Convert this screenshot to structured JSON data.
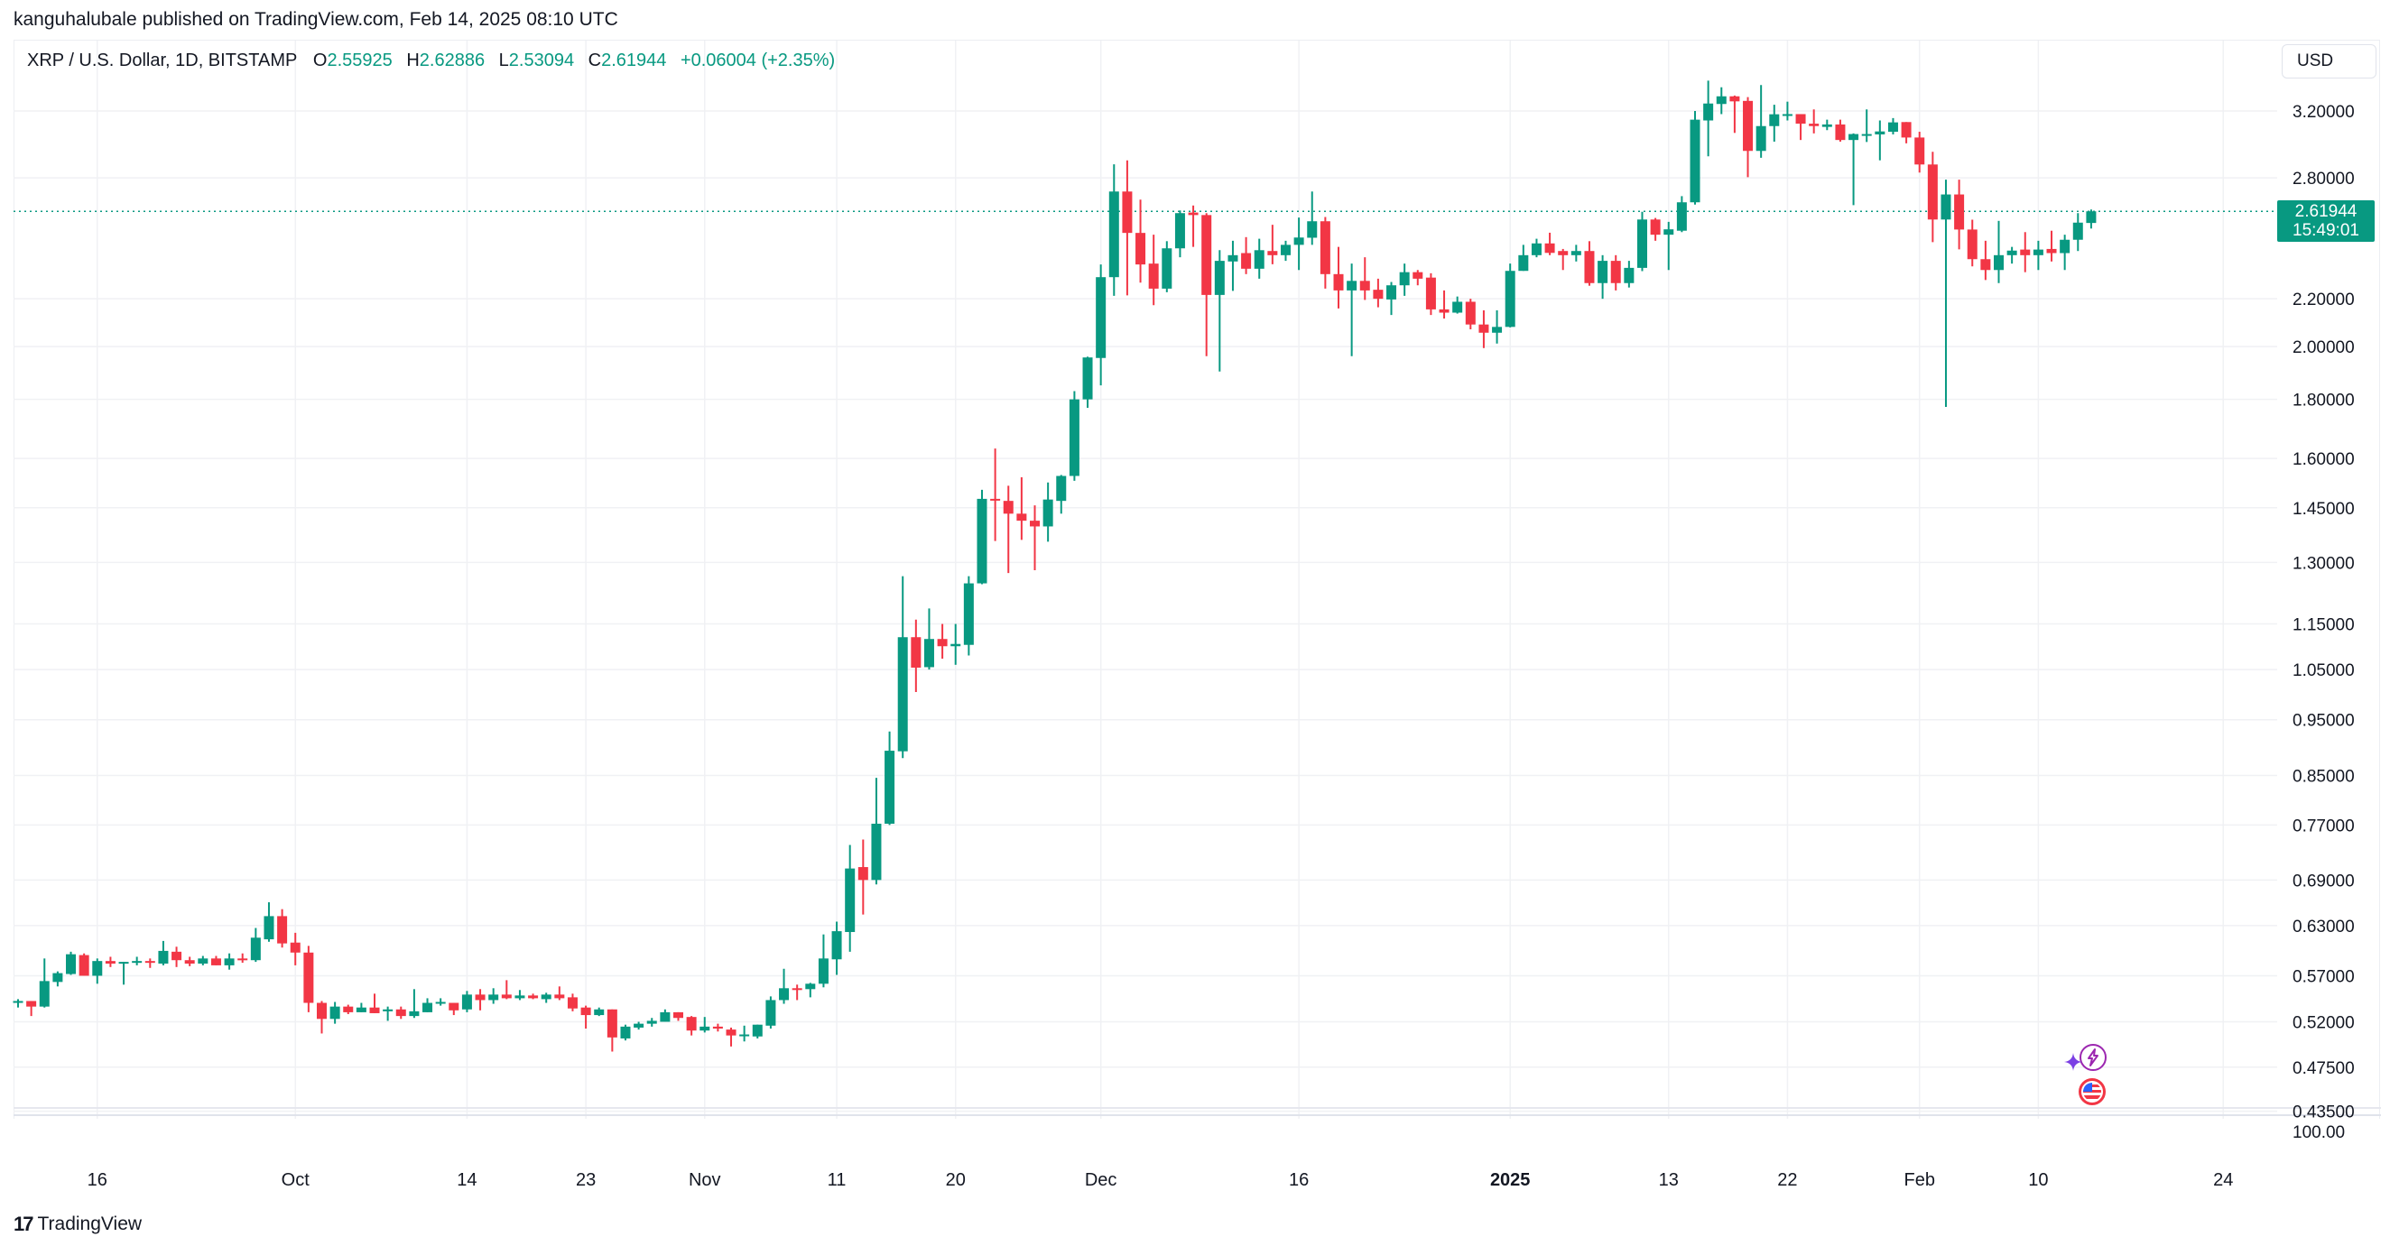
{
  "header": {
    "published": "kanguhalubale published on TradingView.com, Feb 14, 2025 08:10 UTC"
  },
  "legend": {
    "symbol": "XRP / U.S. Dollar, 1D, BITSTAMP",
    "o_label": "O",
    "o": "2.55925",
    "h_label": "H",
    "h": "2.62886",
    "l_label": "L",
    "l": "2.53094",
    "c_label": "C",
    "c": "2.61944",
    "change": "+0.06004 (+2.35%)"
  },
  "price_axis": {
    "currency": "USD",
    "current_price": "2.61944",
    "countdown": "15:49:01",
    "pane_label": "100.00"
  },
  "events": [
    {
      "icon": "lightning-sparkle-icon"
    },
    {
      "icon": "us-flag-icon"
    }
  ],
  "footer": {
    "brand": "TradingView"
  },
  "colors": {
    "up": "#089981",
    "down": "#F23645",
    "grid": "#f0f1f4",
    "text": "#131722",
    "event_purple": "#9c27b0",
    "event_red": "#F23645"
  },
  "chart_data": {
    "type": "candlestick",
    "scale": "log",
    "ylim": [
      0.435,
      3.2
    ],
    "grid": true,
    "last_price": 2.61944,
    "yticks": [
      "3.20000",
      "2.80000",
      "2.20000",
      "2.00000",
      "1.80000",
      "1.60000",
      "1.45000",
      "1.30000",
      "1.15000",
      "1.05000",
      "0.95000",
      "0.85000",
      "0.77000",
      "0.69000",
      "0.63000",
      "0.57000",
      "0.52000",
      "0.47500",
      "0.43500"
    ],
    "xticks": [
      {
        "label": "16",
        "date": "2024-09-16"
      },
      {
        "label": "Oct",
        "date": "2024-10-01"
      },
      {
        "label": "14",
        "date": "2024-10-14"
      },
      {
        "label": "23",
        "date": "2024-10-23"
      },
      {
        "label": "Nov",
        "date": "2024-11-01"
      },
      {
        "label": "11",
        "date": "2024-11-11"
      },
      {
        "label": "20",
        "date": "2024-11-20"
      },
      {
        "label": "Dec",
        "date": "2024-12-01"
      },
      {
        "label": "16",
        "date": "2024-12-16"
      },
      {
        "label": "2025",
        "date": "2025-01-01",
        "bold": true
      },
      {
        "label": "13",
        "date": "2025-01-13"
      },
      {
        "label": "22",
        "date": "2025-01-22"
      },
      {
        "label": "Feb",
        "date": "2025-02-01"
      },
      {
        "label": "10",
        "date": "2025-02-10"
      },
      {
        "label": "24",
        "date": "2025-02-24"
      }
    ],
    "columns": [
      "date",
      "open",
      "high",
      "low",
      "close"
    ],
    "candles": [
      [
        "2024-09-10",
        0.54,
        0.544,
        0.535,
        0.542
      ],
      [
        "2024-09-11",
        0.542,
        0.542,
        0.526,
        0.536
      ],
      [
        "2024-09-12",
        0.536,
        0.59,
        0.535,
        0.564
      ],
      [
        "2024-09-13",
        0.563,
        0.575,
        0.558,
        0.573
      ],
      [
        "2024-09-14",
        0.572,
        0.598,
        0.571,
        0.595
      ],
      [
        "2024-09-15",
        0.594,
        0.596,
        0.57,
        0.57
      ],
      [
        "2024-09-16",
        0.57,
        0.59,
        0.561,
        0.587
      ],
      [
        "2024-09-17",
        0.587,
        0.592,
        0.58,
        0.584
      ],
      [
        "2024-09-18",
        0.584,
        0.586,
        0.56,
        0.586
      ],
      [
        "2024-09-19",
        0.585,
        0.592,
        0.582,
        0.587
      ],
      [
        "2024-09-20",
        0.587,
        0.59,
        0.579,
        0.585
      ],
      [
        "2024-09-21",
        0.584,
        0.611,
        0.582,
        0.599
      ],
      [
        "2024-09-22",
        0.598,
        0.604,
        0.58,
        0.588
      ],
      [
        "2024-09-23",
        0.588,
        0.592,
        0.581,
        0.584
      ],
      [
        "2024-09-24",
        0.584,
        0.593,
        0.582,
        0.59
      ],
      [
        "2024-09-25",
        0.59,
        0.593,
        0.582,
        0.582
      ],
      [
        "2024-09-26",
        0.582,
        0.596,
        0.577,
        0.59
      ],
      [
        "2024-09-27",
        0.59,
        0.596,
        0.585,
        0.588
      ],
      [
        "2024-09-28",
        0.588,
        0.627,
        0.586,
        0.615
      ],
      [
        "2024-09-29",
        0.613,
        0.66,
        0.61,
        0.642
      ],
      [
        "2024-09-30",
        0.642,
        0.651,
        0.603,
        0.608
      ],
      [
        "2024-10-01",
        0.609,
        0.621,
        0.582,
        0.597
      ],
      [
        "2024-10-02",
        0.597,
        0.605,
        0.53,
        0.54
      ],
      [
        "2024-10-03",
        0.54,
        0.542,
        0.508,
        0.523
      ],
      [
        "2024-10-04",
        0.523,
        0.541,
        0.518,
        0.536
      ],
      [
        "2024-10-05",
        0.536,
        0.538,
        0.528,
        0.53
      ],
      [
        "2024-10-06",
        0.53,
        0.54,
        0.53,
        0.535
      ],
      [
        "2024-10-07",
        0.535,
        0.55,
        0.529,
        0.529
      ],
      [
        "2024-10-08",
        0.531,
        0.536,
        0.521,
        0.533
      ],
      [
        "2024-10-09",
        0.533,
        0.536,
        0.523,
        0.526
      ],
      [
        "2024-10-10",
        0.526,
        0.555,
        0.524,
        0.531
      ],
      [
        "2024-10-11",
        0.53,
        0.545,
        0.53,
        0.54
      ],
      [
        "2024-10-12",
        0.54,
        0.545,
        0.537,
        0.541
      ],
      [
        "2024-10-13",
        0.54,
        0.54,
        0.527,
        0.532
      ],
      [
        "2024-10-14",
        0.533,
        0.553,
        0.53,
        0.549
      ],
      [
        "2024-10-15",
        0.549,
        0.555,
        0.532,
        0.543
      ],
      [
        "2024-10-16",
        0.543,
        0.556,
        0.539,
        0.549
      ],
      [
        "2024-10-17",
        0.549,
        0.565,
        0.544,
        0.545
      ],
      [
        "2024-10-18",
        0.545,
        0.554,
        0.543,
        0.548
      ],
      [
        "2024-10-19",
        0.548,
        0.55,
        0.544,
        0.545
      ],
      [
        "2024-10-20",
        0.544,
        0.551,
        0.54,
        0.549
      ],
      [
        "2024-10-21",
        0.549,
        0.558,
        0.543,
        0.545
      ],
      [
        "2024-10-22",
        0.546,
        0.55,
        0.531,
        0.534
      ],
      [
        "2024-10-23",
        0.535,
        0.537,
        0.513,
        0.527
      ],
      [
        "2024-10-24",
        0.527,
        0.535,
        0.526,
        0.533
      ],
      [
        "2024-10-25",
        0.533,
        0.533,
        0.49,
        0.504
      ],
      [
        "2024-10-26",
        0.503,
        0.517,
        0.501,
        0.515
      ],
      [
        "2024-10-27",
        0.514,
        0.52,
        0.512,
        0.518
      ],
      [
        "2024-10-28",
        0.518,
        0.524,
        0.515,
        0.521
      ],
      [
        "2024-10-29",
        0.52,
        0.533,
        0.52,
        0.53
      ],
      [
        "2024-10-30",
        0.53,
        0.53,
        0.521,
        0.524
      ],
      [
        "2024-10-31",
        0.525,
        0.526,
        0.506,
        0.511
      ],
      [
        "2024-11-01",
        0.511,
        0.525,
        0.509,
        0.515
      ],
      [
        "2024-11-02",
        0.515,
        0.518,
        0.51,
        0.513
      ],
      [
        "2024-11-03",
        0.512,
        0.514,
        0.495,
        0.506
      ],
      [
        "2024-11-04",
        0.506,
        0.516,
        0.5,
        0.507
      ],
      [
        "2024-11-05",
        0.505,
        0.517,
        0.503,
        0.517
      ],
      [
        "2024-11-06",
        0.516,
        0.547,
        0.513,
        0.543
      ],
      [
        "2024-11-07",
        0.543,
        0.578,
        0.539,
        0.556
      ],
      [
        "2024-11-08",
        0.556,
        0.56,
        0.543,
        0.555
      ],
      [
        "2024-11-09",
        0.555,
        0.562,
        0.546,
        0.561
      ],
      [
        "2024-11-10",
        0.561,
        0.619,
        0.557,
        0.59
      ],
      [
        "2024-11-11",
        0.589,
        0.635,
        0.571,
        0.623
      ],
      [
        "2024-11-12",
        0.622,
        0.74,
        0.598,
        0.706
      ],
      [
        "2024-11-13",
        0.708,
        0.748,
        0.644,
        0.69
      ],
      [
        "2024-11-14",
        0.69,
        0.846,
        0.684,
        0.772
      ],
      [
        "2024-11-15",
        0.772,
        0.928,
        0.77,
        0.893
      ],
      [
        "2024-11-16",
        0.892,
        1.265,
        0.88,
        1.12
      ],
      [
        "2024-11-17",
        1.12,
        1.16,
        1.004,
        1.054
      ],
      [
        "2024-11-18",
        1.055,
        1.186,
        1.05,
        1.116
      ],
      [
        "2024-11-19",
        1.116,
        1.15,
        1.073,
        1.1
      ],
      [
        "2024-11-20",
        1.1,
        1.15,
        1.06,
        1.105
      ],
      [
        "2024-11-21",
        1.103,
        1.265,
        1.08,
        1.247
      ],
      [
        "2024-11-22",
        1.247,
        1.503,
        1.245,
        1.476
      ],
      [
        "2024-11-23",
        1.476,
        1.632,
        1.357,
        1.472
      ],
      [
        "2024-11-24",
        1.47,
        1.515,
        1.273,
        1.433
      ],
      [
        "2024-11-25",
        1.433,
        1.541,
        1.36,
        1.413
      ],
      [
        "2024-11-26",
        1.413,
        1.457,
        1.28,
        1.397
      ],
      [
        "2024-11-27",
        1.397,
        1.525,
        1.355,
        1.474
      ],
      [
        "2024-11-28",
        1.47,
        1.548,
        1.433,
        1.545
      ],
      [
        "2024-11-29",
        1.545,
        1.83,
        1.53,
        1.8
      ],
      [
        "2024-11-30",
        1.8,
        1.96,
        1.77,
        1.957
      ],
      [
        "2024-12-01",
        1.955,
        2.356,
        1.851,
        2.297
      ],
      [
        "2024-12-02",
        2.297,
        2.877,
        2.213,
        2.725
      ],
      [
        "2024-12-03",
        2.725,
        2.9,
        2.215,
        2.509
      ],
      [
        "2024-12-04",
        2.509,
        2.681,
        2.272,
        2.356
      ],
      [
        "2024-12-05",
        2.36,
        2.5,
        2.172,
        2.245
      ],
      [
        "2024-12-06",
        2.245,
        2.468,
        2.229,
        2.433
      ],
      [
        "2024-12-07",
        2.433,
        2.624,
        2.39,
        2.61
      ],
      [
        "2024-12-08",
        2.613,
        2.65,
        2.44,
        2.6
      ],
      [
        "2024-12-09",
        2.6,
        2.61,
        1.962,
        2.217
      ],
      [
        "2024-12-10",
        2.217,
        2.424,
        1.903,
        2.373
      ],
      [
        "2024-12-11",
        2.37,
        2.47,
        2.235,
        2.4
      ],
      [
        "2024-12-12",
        2.41,
        2.488,
        2.311,
        2.336
      ],
      [
        "2024-12-13",
        2.336,
        2.48,
        2.29,
        2.424
      ],
      [
        "2024-12-14",
        2.42,
        2.55,
        2.357,
        2.4
      ],
      [
        "2024-12-15",
        2.4,
        2.47,
        2.373,
        2.45
      ],
      [
        "2024-12-16",
        2.45,
        2.587,
        2.33,
        2.486
      ],
      [
        "2024-12-17",
        2.485,
        2.725,
        2.45,
        2.568
      ],
      [
        "2024-12-18",
        2.568,
        2.59,
        2.245,
        2.311
      ],
      [
        "2024-12-19",
        2.311,
        2.44,
        2.158,
        2.237
      ],
      [
        "2024-12-20",
        2.237,
        2.36,
        1.962,
        2.28
      ],
      [
        "2024-12-21",
        2.28,
        2.39,
        2.195,
        2.237
      ],
      [
        "2024-12-22",
        2.24,
        2.29,
        2.163,
        2.2
      ],
      [
        "2024-12-23",
        2.197,
        2.275,
        2.13,
        2.26
      ],
      [
        "2024-12-24",
        2.26,
        2.36,
        2.213,
        2.32
      ],
      [
        "2024-12-25",
        2.32,
        2.33,
        2.26,
        2.29
      ],
      [
        "2024-12-26",
        2.295,
        2.315,
        2.13,
        2.154
      ],
      [
        "2024-12-27",
        2.154,
        2.237,
        2.115,
        2.14
      ],
      [
        "2024-12-28",
        2.14,
        2.21,
        2.136,
        2.187
      ],
      [
        "2024-12-29",
        2.187,
        2.2,
        2.07,
        2.09
      ],
      [
        "2024-12-30",
        2.09,
        2.15,
        1.994,
        2.056
      ],
      [
        "2024-12-31",
        2.056,
        2.15,
        2.012,
        2.08
      ],
      [
        "2025-01-01",
        2.08,
        2.36,
        2.078,
        2.326
      ],
      [
        "2025-01-02",
        2.326,
        2.45,
        2.326,
        2.4
      ],
      [
        "2025-01-03",
        2.4,
        2.48,
        2.39,
        2.457
      ],
      [
        "2025-01-04",
        2.457,
        2.51,
        2.4,
        2.411
      ],
      [
        "2025-01-05",
        2.42,
        2.43,
        2.33,
        2.4
      ],
      [
        "2025-01-06",
        2.4,
        2.45,
        2.37,
        2.42
      ],
      [
        "2025-01-07",
        2.42,
        2.468,
        2.258,
        2.27
      ],
      [
        "2025-01-08",
        2.27,
        2.4,
        2.2,
        2.373
      ],
      [
        "2025-01-09",
        2.373,
        2.4,
        2.237,
        2.27
      ],
      [
        "2025-01-10",
        2.27,
        2.373,
        2.25,
        2.34
      ],
      [
        "2025-01-11",
        2.34,
        2.617,
        2.325,
        2.577
      ],
      [
        "2025-01-12",
        2.577,
        2.585,
        2.47,
        2.5
      ],
      [
        "2025-01-13",
        2.5,
        2.565,
        2.33,
        2.527
      ],
      [
        "2025-01-14",
        2.52,
        2.7,
        2.513,
        2.667
      ],
      [
        "2025-01-15",
        2.667,
        3.2,
        2.655,
        3.145
      ],
      [
        "2025-01-16",
        3.14,
        3.4,
        2.923,
        3.248
      ],
      [
        "2025-01-17",
        3.245,
        3.355,
        3.18,
        3.295
      ],
      [
        "2025-01-18",
        3.295,
        3.3,
        3.063,
        3.262
      ],
      [
        "2025-01-19",
        3.265,
        3.29,
        2.804,
        2.955
      ],
      [
        "2025-01-20",
        2.955,
        3.37,
        2.915,
        3.105
      ],
      [
        "2025-01-21",
        3.105,
        3.24,
        3.01,
        3.179
      ],
      [
        "2025-01-22",
        3.178,
        3.26,
        3.14,
        3.18
      ],
      [
        "2025-01-23",
        3.18,
        3.18,
        3.02,
        3.12
      ],
      [
        "2025-01-24",
        3.12,
        3.21,
        3.06,
        3.105
      ],
      [
        "2025-01-25",
        3.1,
        3.145,
        3.08,
        3.115
      ],
      [
        "2025-01-26",
        3.115,
        3.145,
        3.01,
        3.02
      ],
      [
        "2025-01-27",
        3.02,
        3.06,
        2.652,
        3.056
      ],
      [
        "2025-01-28",
        3.05,
        3.21,
        3.008,
        3.056
      ],
      [
        "2025-01-29",
        3.054,
        3.14,
        2.9,
        3.072
      ],
      [
        "2025-01-30",
        3.07,
        3.155,
        3.054,
        3.128
      ],
      [
        "2025-01-31",
        3.13,
        3.13,
        3.0,
        3.035
      ],
      [
        "2025-02-01",
        3.035,
        3.07,
        2.83,
        2.876
      ],
      [
        "2025-02-02",
        2.876,
        2.95,
        2.463,
        2.577
      ],
      [
        "2025-02-03",
        2.577,
        2.79,
        1.773,
        2.709
      ],
      [
        "2025-02-04",
        2.709,
        2.79,
        2.428,
        2.526
      ],
      [
        "2025-02-05",
        2.526,
        2.576,
        2.347,
        2.381
      ],
      [
        "2025-02-06",
        2.381,
        2.47,
        2.284,
        2.33
      ],
      [
        "2025-02-07",
        2.33,
        2.57,
        2.27,
        2.4
      ],
      [
        "2025-02-08",
        2.4,
        2.44,
        2.36,
        2.422
      ],
      [
        "2025-02-09",
        2.427,
        2.513,
        2.32,
        2.4
      ],
      [
        "2025-02-10",
        2.4,
        2.47,
        2.33,
        2.427
      ],
      [
        "2025-02-11",
        2.43,
        2.52,
        2.37,
        2.41
      ],
      [
        "2025-02-12",
        2.41,
        2.5,
        2.33,
        2.475
      ],
      [
        "2025-02-13",
        2.475,
        2.61,
        2.42,
        2.561
      ],
      [
        "2025-02-14",
        2.55925,
        2.62886,
        2.53094,
        2.61944
      ]
    ]
  }
}
